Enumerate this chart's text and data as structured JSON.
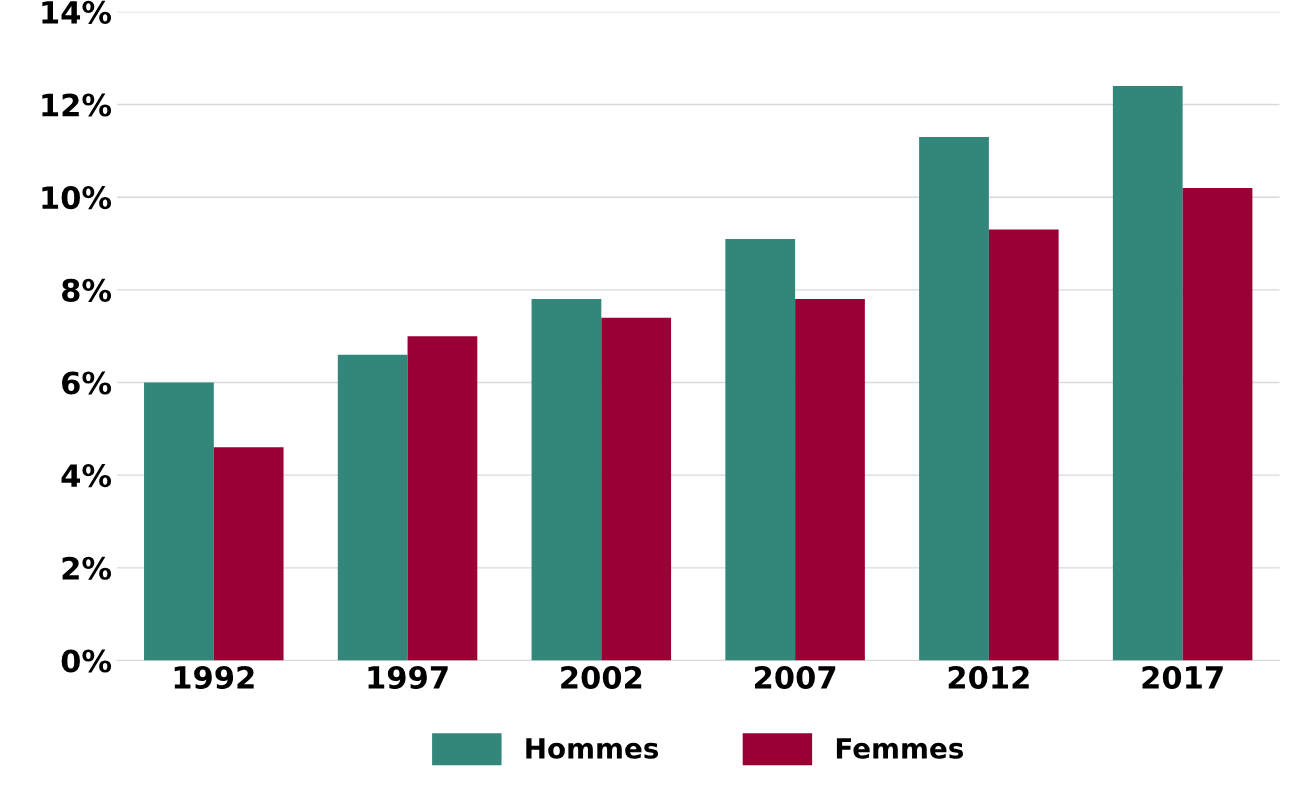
{
  "chart_data": {
    "type": "bar",
    "categories": [
      "1992",
      "1997",
      "2002",
      "2007",
      "2012",
      "2017"
    ],
    "series": [
      {
        "name": "Hommes",
        "color": "#32867a",
        "values": [
          6.0,
          6.6,
          7.8,
          9.1,
          11.3,
          12.4
        ]
      },
      {
        "name": "Femmes",
        "color": "#9a0036",
        "values": [
          4.6,
          7.0,
          7.4,
          7.8,
          9.3,
          10.2
        ]
      }
    ],
    "ylim": [
      0,
      14
    ],
    "yticks": [
      {
        "value": 0,
        "label": "0%"
      },
      {
        "value": 2,
        "label": "2%"
      },
      {
        "value": 4,
        "label": "4%"
      },
      {
        "value": 6,
        "label": "6%"
      },
      {
        "value": 8,
        "label": "8%"
      },
      {
        "value": 10,
        "label": "10%"
      },
      {
        "value": 12,
        "label": "12%"
      },
      {
        "value": 14,
        "label": "14%"
      }
    ],
    "grid": "y",
    "legend": "bottom"
  }
}
